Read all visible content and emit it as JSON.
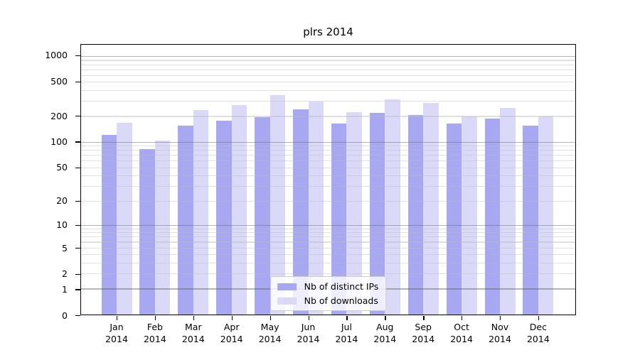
{
  "figure": {
    "background": "#ffffff",
    "spine_color": "#000000"
  },
  "chart_data": {
    "type": "bar",
    "title": "plrs 2014",
    "xlabel": "",
    "ylabel": "",
    "scale": "log1p",
    "grid": true,
    "legend_position": "lower center",
    "categories": [
      "Jan 2014",
      "Feb 2014",
      "Mar 2014",
      "Apr 2014",
      "May 2014",
      "Jun 2014",
      "Jul 2014",
      "Aug 2014",
      "Sep 2014",
      "Oct 2014",
      "Nov 2014",
      "Dec 2014"
    ],
    "series": [
      {
        "name": "Nb of distinct IPs",
        "color": "#a8a8f2",
        "values": [
          120,
          82,
          154,
          177,
          195,
          240,
          165,
          219,
          205,
          165,
          186,
          156
        ]
      },
      {
        "name": "Nb of downloads",
        "color": "#dadaf8",
        "values": [
          168,
          104,
          233,
          269,
          351,
          296,
          223,
          313,
          285,
          200,
          248,
          197
        ]
      }
    ],
    "y_ticks": [
      1000,
      500,
      200,
      100,
      50,
      20,
      10,
      5,
      2,
      1,
      0
    ],
    "y_tick_labels": [
      "1000",
      "500",
      "200",
      "100",
      "50",
      "20",
      "10",
      "5",
      "2",
      "1",
      "0"
    ],
    "ylim": [
      0,
      1352
    ]
  }
}
